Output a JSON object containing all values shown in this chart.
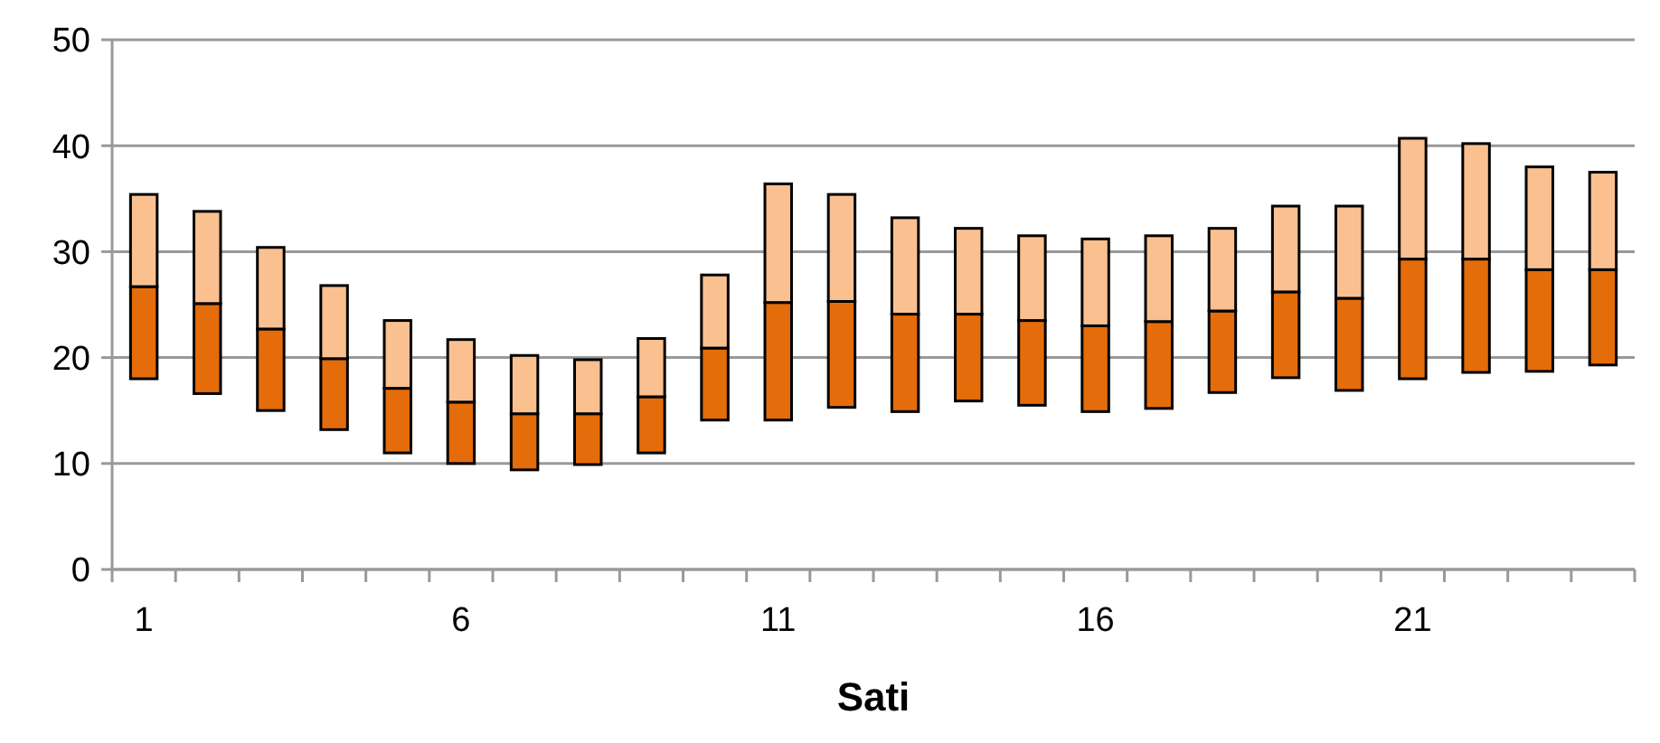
{
  "chart_data": {
    "type": "bar",
    "xlabel": "Sati",
    "categories": [
      "1",
      null,
      null,
      null,
      null,
      "6",
      null,
      null,
      null,
      null,
      "11",
      null,
      null,
      null,
      null,
      "16",
      null,
      null,
      null,
      null,
      "21",
      null,
      null,
      null
    ],
    "series": [
      {
        "color": "#e46c0a",
        "base": [
          18,
          16.6,
          15,
          13.2,
          11,
          10,
          9.4,
          9.9,
          11,
          14.1,
          14.1,
          15.3,
          14.9,
          15.9,
          15.5,
          14.9,
          15.2,
          16.7,
          18.1,
          16.9,
          18,
          18.6,
          18.7,
          19.3
        ],
        "values": [
          8.7,
          8.5,
          7.7,
          6.7,
          6.1,
          5.8,
          5.3,
          4.8,
          5.3,
          6.8,
          11.1,
          10,
          9.2,
          8.2,
          8,
          8.1,
          8.2,
          7.7,
          8.1,
          8.7,
          11.3,
          10.7,
          9.6,
          9
        ]
      },
      {
        "color": "#fac090",
        "base": [
          26.7,
          25.1,
          22.7,
          19.9,
          17.1,
          15.8,
          14.7,
          14.7,
          16.3,
          20.9,
          25.2,
          25.3,
          24.1,
          24.1,
          23.5,
          23,
          23.4,
          24.4,
          26.2,
          25.6,
          29.3,
          29.3,
          28.3,
          28.3
        ],
        "values": [
          8.7,
          8.7,
          7.7,
          6.9,
          6.4,
          5.9,
          5.5,
          5.1,
          5.5,
          6.9,
          11.2,
          10.1,
          9.1,
          8.1,
          8,
          8.2,
          8.1,
          7.8,
          8.1,
          8.7,
          11.4,
          10.9,
          9.7,
          9.2
        ]
      }
    ],
    "ylim": [
      0,
      50
    ],
    "yticks": [
      0,
      10,
      20,
      30,
      40,
      50
    ],
    "grid": "y"
  }
}
